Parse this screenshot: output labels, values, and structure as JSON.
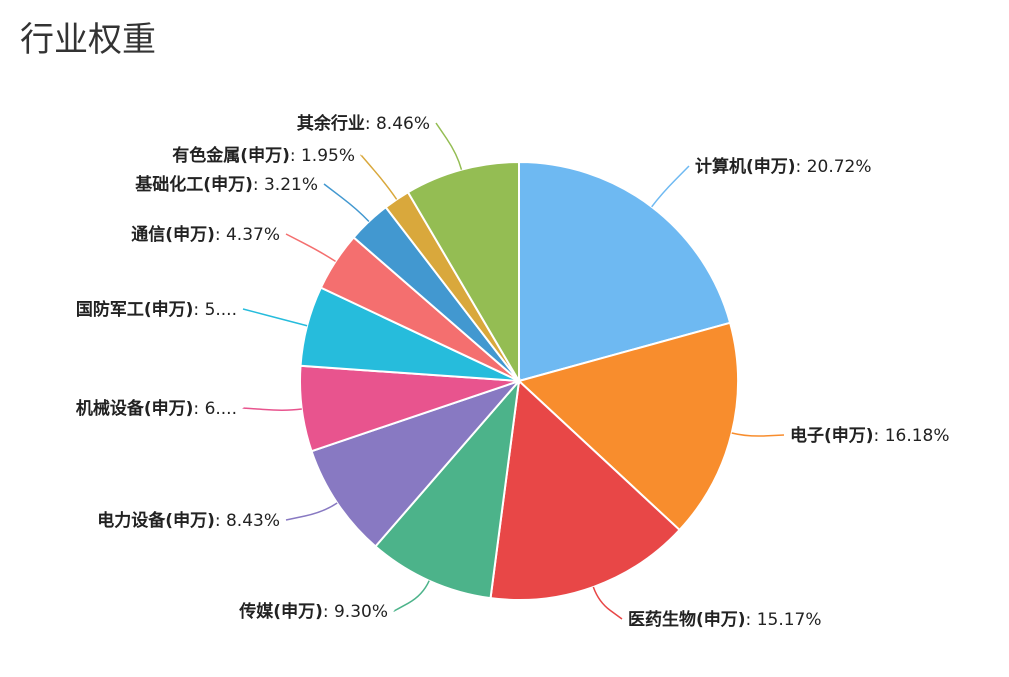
{
  "title": "行业权重",
  "chart_data": {
    "type": "pie",
    "title": "行业权重",
    "slices": [
      {
        "name": "计算机(申万)",
        "value": 20.72,
        "label": "20.72%",
        "color": "#6EB9F2"
      },
      {
        "name": "电子(申万)",
        "value": 16.18,
        "label": "16.18%",
        "color": "#F88D2D"
      },
      {
        "name": "医药生物(申万)",
        "value": 15.17,
        "label": "15.17%",
        "color": "#E84747"
      },
      {
        "name": "传媒(申万)",
        "value": 9.3,
        "label": "9.30%",
        "color": "#4CB38A"
      },
      {
        "name": "电力设备(申万)",
        "value": 8.43,
        "label": "8.43%",
        "color": "#8879C2"
      },
      {
        "name": "机械设备(申万)",
        "value": 6.3,
        "label": "6....",
        "color": "#E8548E"
      },
      {
        "name": "国防军工(申万)",
        "value": 5.9,
        "label": "5....",
        "color": "#26BCDC"
      },
      {
        "name": "通信(申万)",
        "value": 4.37,
        "label": "4.37%",
        "color": "#F46F6F"
      },
      {
        "name": "基础化工(申万)",
        "value": 3.21,
        "label": "3.21%",
        "color": "#4298D0"
      },
      {
        "name": "有色金属(申万)",
        "value": 1.95,
        "label": "1.95%",
        "color": "#D9A83C"
      },
      {
        "name": "其余行业",
        "value": 8.46,
        "label": "8.46%",
        "color": "#94BD53"
      }
    ]
  }
}
